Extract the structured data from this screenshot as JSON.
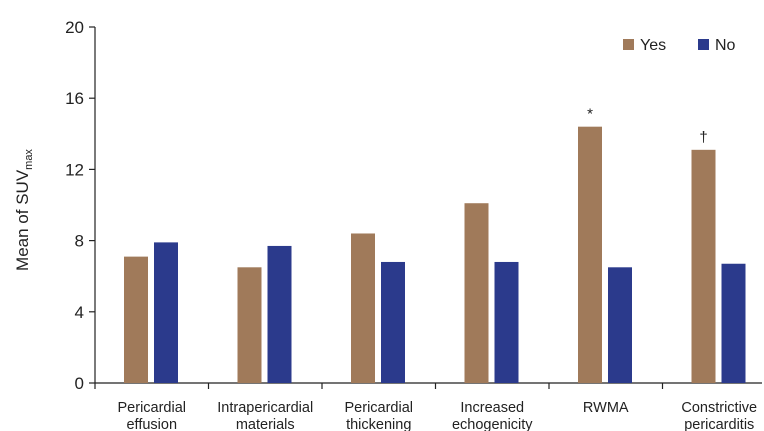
{
  "chart_data": {
    "type": "bar",
    "categories": [
      [
        "Pericardial",
        "effusion"
      ],
      [
        "Intrapericardial",
        "materials"
      ],
      [
        "Pericardial",
        "thickening"
      ],
      [
        "Increased",
        "echogenicity"
      ],
      [
        "RWMA"
      ],
      [
        "Constrictive",
        "pericarditis"
      ]
    ],
    "series": [
      {
        "name": "Yes",
        "color": "#a07a5a",
        "values": [
          7.1,
          6.5,
          8.4,
          10.1,
          14.4,
          13.1
        ]
      },
      {
        "name": "No",
        "color": "#2b3a8c",
        "values": [
          7.9,
          7.7,
          6.8,
          6.8,
          6.5,
          6.7
        ]
      }
    ],
    "annotations": [
      {
        "category_index": 4,
        "series": "Yes",
        "text": "*"
      },
      {
        "category_index": 5,
        "series": "Yes",
        "text": "†"
      }
    ],
    "ylabel": {
      "main": "Mean of SUV",
      "subscript": "max"
    },
    "xlabel": "",
    "ylim": [
      0,
      20
    ],
    "yticks": [
      0,
      4,
      8,
      12,
      16,
      20
    ],
    "legend_position": "top-right",
    "grid": false
  }
}
